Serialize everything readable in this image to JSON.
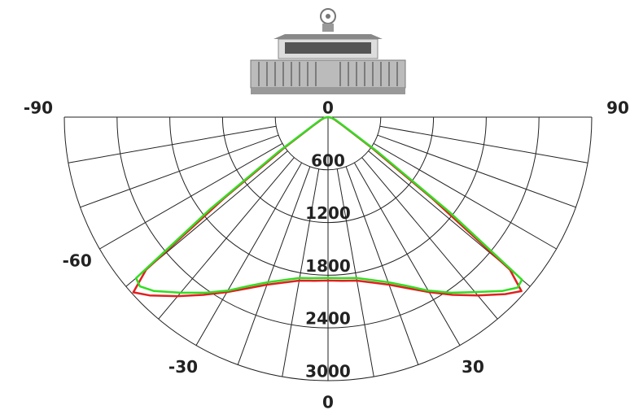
{
  "chart_data": {
    "type": "polar",
    "x": [
      -90,
      -80,
      -70,
      -60,
      -55,
      -52,
      -50,
      -48,
      -45,
      -40,
      -35,
      -30,
      -25,
      -20,
      -15,
      -10,
      -5,
      0,
      5,
      10,
      15,
      20,
      25,
      30,
      35,
      40,
      45,
      48,
      50,
      52,
      55,
      60,
      70,
      80,
      90
    ],
    "series": [
      {
        "color": "#e02020",
        "values": [
          0,
          40,
          80,
          200,
          600,
          1500,
          2700,
          2980,
          2870,
          2660,
          2470,
          2300,
          2150,
          2030,
          1950,
          1890,
          1870,
          1860,
          1870,
          1890,
          1950,
          2030,
          2150,
          2300,
          2470,
          2650,
          2850,
          2960,
          2700,
          1500,
          600,
          200,
          80,
          40,
          0
        ]
      },
      {
        "color": "#33dd22",
        "values": [
          0,
          40,
          90,
          220,
          700,
          1700,
          2850,
          2880,
          2800,
          2610,
          2440,
          2280,
          2120,
          2000,
          1920,
          1860,
          1840,
          1830,
          1840,
          1860,
          1920,
          2000,
          2120,
          2280,
          2440,
          2600,
          2800,
          2900,
          2880,
          1750,
          700,
          220,
          90,
          40,
          0
        ]
      }
    ],
    "rlim": [
      0,
      3000
    ],
    "rticks": [
      600,
      1200,
      1800,
      2400,
      3000
    ],
    "angle_grid": [
      -90,
      -80,
      -70,
      -60,
      -50,
      -40,
      -30,
      -20,
      -10,
      0,
      10,
      20,
      30,
      40,
      50,
      60,
      70,
      80,
      90
    ],
    "angle_ticks": [
      -90,
      -60,
      -30,
      0,
      30,
      90,
      {
        "value": 180,
        "label": "0"
      }
    ]
  }
}
